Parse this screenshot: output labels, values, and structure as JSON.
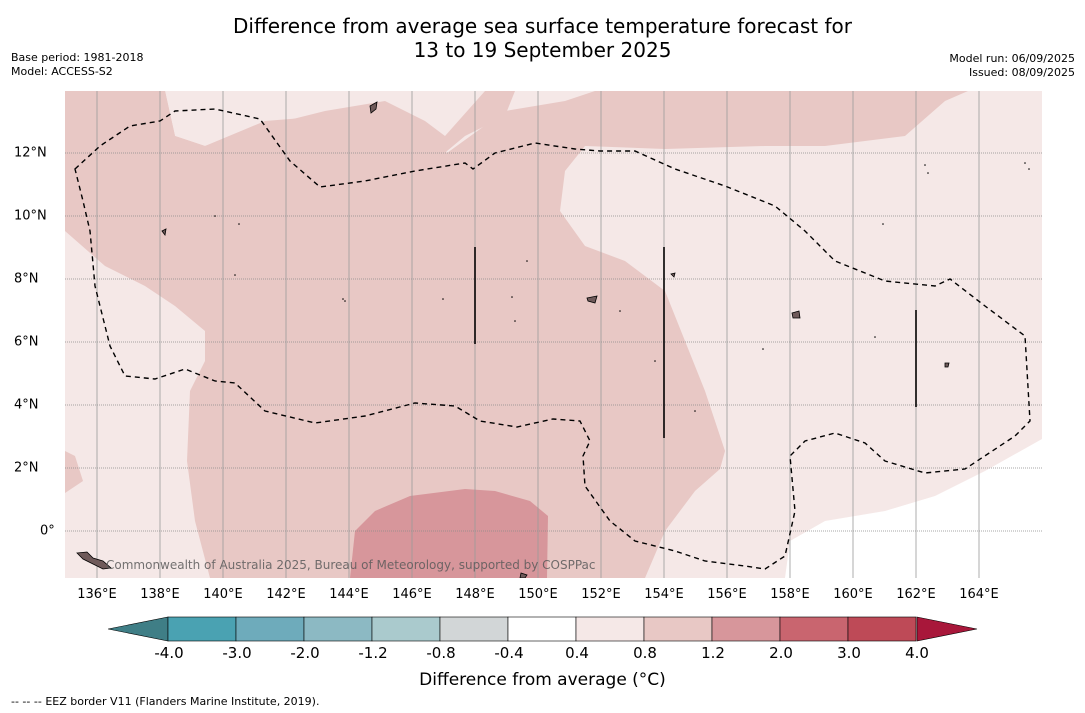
{
  "header": {
    "title_line1": "Difference from average sea surface temperature forecast for",
    "title_line2": "13 to 19 September 2025",
    "base_period": "Base period: 1981-2018",
    "model": "Model: ACCESS-S2",
    "model_run": "Model run: 06/09/2025",
    "issued": "Issued: 08/09/2025"
  },
  "map": {
    "lon_labels": [
      "136°E",
      "138°E",
      "140°E",
      "142°E",
      "144°E",
      "146°E",
      "148°E",
      "150°E",
      "152°E",
      "154°E",
      "156°E",
      "158°E",
      "160°E",
      "162°E",
      "164°E"
    ],
    "lat_labels": [
      "12°N",
      "10°N",
      "8°N",
      "6°N",
      "4°N",
      "2°N",
      "0°"
    ],
    "copyright": "Commonwealth of Australia 2025, Bureau of Meteorology, supported by COSPPac",
    "legend_note": "EEZ border V11 (Flanders Marine Institute, 2019).",
    "legend_note_symbol": "-- -- --"
  },
  "colorbar": {
    "label": "Difference from average (°C)",
    "ticks": [
      "-4.0",
      "-3.0",
      "-2.0",
      "-1.2",
      "-0.8",
      "-0.4",
      "0.4",
      "0.8",
      "1.2",
      "2.0",
      "3.0",
      "4.0"
    ],
    "colors": [
      "#4aa2b2",
      "#6eabbb",
      "#8cb9c3",
      "#aacacd",
      "#d2d6d7",
      "#ffffff",
      "#f5e8e7",
      "#e8c8c5",
      "#d7969b",
      "#c9656f",
      "#be4a57"
    ],
    "under_color": "#3f7e86",
    "over_color": "#a8173a"
  }
}
